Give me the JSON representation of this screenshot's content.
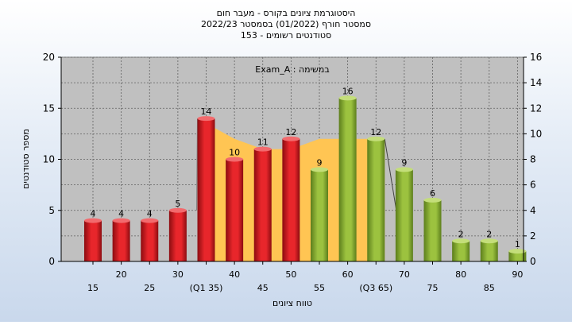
{
  "chart_data": {
    "type": "bar",
    "title_lines": [
      "היסטוגרמת ציונים בקורס - מעבר חום",
      "2022/23  סמסטר חורף  (01/2022)  בסמסטר",
      "153 - סטודנטים רשומים"
    ],
    "annotation": "Exam_A : במשימה",
    "xlabel": "טווח ציונים",
    "ylabel": "מספר סטודנטים",
    "ylim": [
      0,
      20
    ],
    "y_ticks": [
      0,
      5,
      10,
      15,
      20
    ],
    "y2lim": [
      0,
      16
    ],
    "y2_ticks": [
      0,
      2,
      4,
      6,
      8,
      10,
      12,
      14,
      16
    ],
    "grid": true,
    "categories": [
      "15",
      "20",
      "25",
      "30",
      "(Q1 35)",
      "40",
      "45",
      "50",
      "55",
      "60",
      "(Q3 65)",
      "70",
      "75",
      "80",
      "85",
      "90"
    ],
    "values": [
      4,
      4,
      4,
      5,
      14,
      10,
      11,
      12,
      9,
      16,
      12,
      9,
      6,
      2,
      2,
      1
    ],
    "bar_groups": [
      "red",
      "red",
      "red",
      "red",
      "red",
      "red",
      "red",
      "red",
      "green",
      "green",
      "green",
      "green",
      "green",
      "green",
      "green",
      "green"
    ],
    "area_series": {
      "x": [
        "(Q1 35)",
        "40",
        "45",
        "50",
        "55",
        "60",
        "(Q3 65)"
      ],
      "values": [
        14,
        12,
        11,
        11,
        12,
        12,
        12
      ]
    },
    "colors": {
      "red": "#e8262b",
      "green": "#9cc23f",
      "area": "#ffc553",
      "plot_bg": "#c0c0c0",
      "grid": "#606060"
    }
  }
}
